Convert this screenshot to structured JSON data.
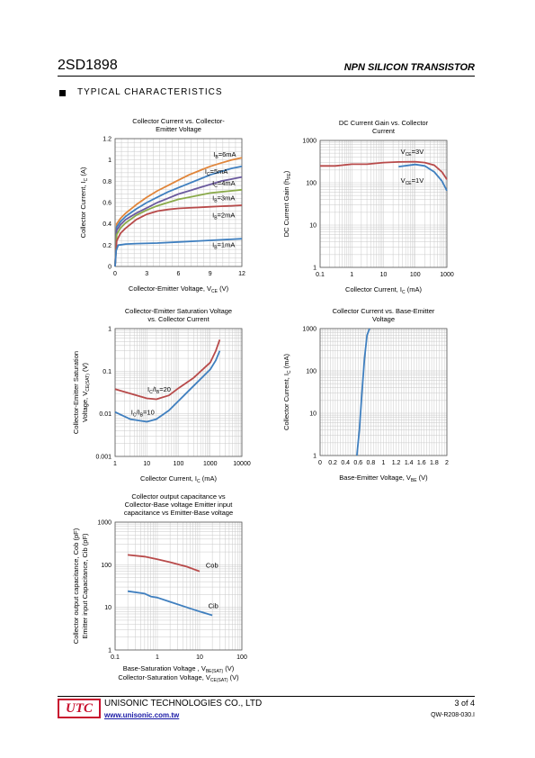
{
  "header": {
    "part_number": "2SD1898",
    "device_type": "NPN SILICON TRANSISTOR"
  },
  "section": {
    "title": "TYPICAL CHARACTERISTICS"
  },
  "footer": {
    "logo_text": "UTC",
    "company": "UNISONIC TECHNOLOGIES CO., LTD",
    "url": "www.unisonic.com.tw",
    "page": "3 of 4",
    "doc_number": "QW-R208-030.I"
  },
  "colors": {
    "orange": "#e0853a",
    "blue": "#3f7fbf",
    "navy": "#3a6ea8",
    "green": "#8aaa4a",
    "red": "#b84a4a",
    "purple": "#6b5a9e",
    "logo_red": "#c8102e"
  },
  "chart_data": [
    {
      "type": "line",
      "title": "Collector Current vs. Collector-Emitter Voltage",
      "title_lines": [
        "Collector Current vs. Collector-",
        "Emitter Voltage"
      ],
      "xlabel": "Collector-Emitter Voltage, V",
      "xlabel_sub": "CE",
      "xlabel_tail": " (V)",
      "ylabel": "Collector Current, I",
      "ylabel_sub": "C",
      "ylabel_tail": " (A)",
      "xscale": "linear",
      "yscale": "linear",
      "xlim": [
        0,
        12
      ],
      "ylim": [
        0,
        1.2
      ],
      "xticks": [
        0,
        3,
        6,
        9,
        12
      ],
      "yticks": [
        0,
        0.2,
        0.4,
        0.6,
        0.8,
        1.0,
        1.2
      ],
      "xtick_labels": [
        "0",
        "3",
        "6",
        "9",
        "12"
      ],
      "ytick_labels": [
        "0",
        "0.2",
        "0.4",
        "0.6",
        "0.8",
        "1",
        "1.2"
      ],
      "grid": true,
      "series": [
        {
          "name": "I",
          "name_sub": "B",
          "name_tail": "=6mA",
          "color": "#e0853a",
          "label_at": [
            9.3,
            1.03
          ],
          "points": [
            [
              0,
              0
            ],
            [
              0.15,
              0.4
            ],
            [
              0.5,
              0.45
            ],
            [
              1,
              0.5
            ],
            [
              2,
              0.58
            ],
            [
              3,
              0.65
            ],
            [
              4,
              0.71
            ],
            [
              5,
              0.76
            ],
            [
              6,
              0.81
            ],
            [
              7,
              0.86
            ],
            [
              8,
              0.9
            ],
            [
              9,
              0.94
            ],
            [
              10,
              0.97
            ],
            [
              11,
              1.0
            ],
            [
              12,
              1.02
            ]
          ]
        },
        {
          "name": "I",
          "name_sub": "C",
          "name_tail": "=5mA",
          "color": "#3f7fbf",
          "label_at": [
            8.5,
            0.87
          ],
          "points": [
            [
              0,
              0
            ],
            [
              0.15,
              0.37
            ],
            [
              0.5,
              0.42
            ],
            [
              1,
              0.47
            ],
            [
              2,
              0.54
            ],
            [
              3,
              0.6
            ],
            [
              4,
              0.65
            ],
            [
              5,
              0.7
            ],
            [
              6,
              0.74
            ],
            [
              7,
              0.78
            ],
            [
              8,
              0.82
            ],
            [
              9,
              0.86
            ],
            [
              10,
              0.89
            ],
            [
              11,
              0.92
            ],
            [
              12,
              0.94
            ]
          ]
        },
        {
          "name": "I",
          "name_sub": "C",
          "name_tail": "=4mA",
          "color": "#6b5a9e",
          "label_at": [
            9.2,
            0.76
          ],
          "points": [
            [
              0,
              0
            ],
            [
              0.15,
              0.34
            ],
            [
              0.5,
              0.39
            ],
            [
              1,
              0.44
            ],
            [
              2,
              0.5
            ],
            [
              3,
              0.55
            ],
            [
              4,
              0.6
            ],
            [
              5,
              0.64
            ],
            [
              6,
              0.68
            ],
            [
              7,
              0.71
            ],
            [
              8,
              0.74
            ],
            [
              9,
              0.77
            ],
            [
              10,
              0.8
            ],
            [
              11,
              0.82
            ],
            [
              12,
              0.84
            ]
          ]
        },
        {
          "name": "I",
          "name_sub": "B",
          "name_tail": "=3mA",
          "color": "#8aaa4a",
          "label_at": [
            9.2,
            0.62
          ],
          "points": [
            [
              0,
              0
            ],
            [
              0.15,
              0.3
            ],
            [
              0.5,
              0.36
            ],
            [
              1,
              0.41
            ],
            [
              2,
              0.48
            ],
            [
              3,
              0.53
            ],
            [
              4,
              0.57
            ],
            [
              5,
              0.6
            ],
            [
              6,
              0.63
            ],
            [
              7,
              0.65
            ],
            [
              8,
              0.67
            ],
            [
              9,
              0.69
            ],
            [
              10,
              0.7
            ],
            [
              11,
              0.71
            ],
            [
              12,
              0.72
            ]
          ]
        },
        {
          "name": "I",
          "name_sub": "B",
          "name_tail": "=2mA",
          "color": "#b84a4a",
          "label_at": [
            9.2,
            0.46
          ],
          "points": [
            [
              0,
              0
            ],
            [
              0.15,
              0.24
            ],
            [
              0.5,
              0.31
            ],
            [
              1,
              0.36
            ],
            [
              2,
              0.44
            ],
            [
              3,
              0.49
            ],
            [
              4,
              0.52
            ],
            [
              5,
              0.535
            ],
            [
              6,
              0.545
            ],
            [
              7,
              0.55
            ],
            [
              8,
              0.555
            ],
            [
              9,
              0.56
            ],
            [
              10,
              0.565
            ],
            [
              11,
              0.57
            ],
            [
              12,
              0.575
            ]
          ]
        },
        {
          "name": "I",
          "name_sub": "B",
          "name_tail": "=1mA",
          "color": "#3f7fbf",
          "label_at": [
            9.2,
            0.18
          ],
          "points": [
            [
              0,
              0
            ],
            [
              0.1,
              0.15
            ],
            [
              0.3,
              0.2
            ],
            [
              0.7,
              0.205
            ],
            [
              1,
              0.21
            ],
            [
              2,
              0.215
            ],
            [
              4,
              0.22
            ],
            [
              6,
              0.23
            ],
            [
              8,
              0.24
            ],
            [
              10,
              0.25
            ],
            [
              12,
              0.26
            ]
          ]
        }
      ]
    },
    {
      "type": "line",
      "title": "DC Current Gain vs. Collector Current",
      "title_lines": [
        "DC Current Gain vs. Collector",
        "Current"
      ],
      "xlabel": "Collector Current, I",
      "xlabel_sub": "C",
      "xlabel_tail": " (mA)",
      "ylabel": "DC Current Gain (h",
      "ylabel_sub": "FE",
      "ylabel_tail": ")",
      "xscale": "log",
      "yscale": "log",
      "xlim": [
        0.1,
        1000
      ],
      "ylim": [
        1,
        1000
      ],
      "xticks": [
        0.1,
        1,
        10,
        100,
        1000
      ],
      "yticks": [
        1,
        10,
        100,
        1000
      ],
      "xtick_labels": [
        "0.1",
        "1",
        "10",
        "100",
        "1000"
      ],
      "ytick_labels": [
        "1",
        "10",
        "100",
        "1000"
      ],
      "grid": true,
      "series": [
        {
          "name": "V",
          "name_sub": "CE",
          "name_tail": "=3V",
          "color": "#b84a4a",
          "label_at": [
            35,
            480
          ],
          "points": [
            [
              0.1,
              250
            ],
            [
              0.3,
              250
            ],
            [
              1,
              275
            ],
            [
              3,
              275
            ],
            [
              10,
              300
            ],
            [
              30,
              310
            ],
            [
              100,
              315
            ],
            [
              200,
              300
            ],
            [
              400,
              260
            ],
            [
              700,
              180
            ],
            [
              1000,
              120
            ]
          ]
        },
        {
          "name": "V",
          "name_sub": "CE",
          "name_tail": "=1V",
          "color": "#3f7fbf",
          "label_at": [
            35,
            100
          ],
          "points": [
            [
              30,
              240
            ],
            [
              100,
              270
            ],
            [
              200,
              250
            ],
            [
              400,
              180
            ],
            [
              700,
              110
            ],
            [
              1000,
              65
            ]
          ]
        }
      ]
    },
    {
      "type": "line",
      "title": "Collector-Emitter Saturation Voltage vs. Collector Current",
      "title_lines": [
        "Collector-Emitter Saturation Voltage",
        "vs. Collector Current"
      ],
      "xlabel": "Collector Current, I",
      "xlabel_sub": "C",
      "xlabel_tail": " (mA)",
      "ylabel_lines": [
        "Collector-Emitter Saturation",
        "Voltage, V"
      ],
      "ylabel_sub": "CE(SAT)",
      "ylabel_tail": " (V)",
      "xscale": "log",
      "yscale": "log",
      "xlim": [
        1,
        10000
      ],
      "ylim": [
        0.001,
        1
      ],
      "xticks": [
        1,
        10,
        100,
        1000,
        10000
      ],
      "yticks": [
        0.001,
        0.01,
        0.1,
        1
      ],
      "xtick_labels": [
        "1",
        "10",
        "100",
        "1000",
        "10000"
      ],
      "ytick_labels": [
        "0.001",
        "0.01",
        "0.1",
        "1"
      ],
      "grid": true,
      "series": [
        {
          "name": "I",
          "name_sub": "C",
          "name_tail": "/I",
          "name_sub2": "B",
          "name_tail2": "=20",
          "color": "#b84a4a",
          "label_at": [
            10.5,
            0.033
          ],
          "points": [
            [
              1,
              0.038
            ],
            [
              3,
              0.03
            ],
            [
              10,
              0.023
            ],
            [
              20,
              0.022
            ],
            [
              50,
              0.027
            ],
            [
              100,
              0.04
            ],
            [
              300,
              0.07
            ],
            [
              1000,
              0.16
            ],
            [
              1500,
              0.3
            ],
            [
              2000,
              0.55
            ]
          ]
        },
        {
          "name": "I",
          "name_sub": "C",
          "name_tail": "/I",
          "name_sub2": "B",
          "name_tail2": "=10",
          "color": "#3f7fbf",
          "label_at": [
            3.2,
            0.0095
          ],
          "points": [
            [
              1,
              0.011
            ],
            [
              3,
              0.0075
            ],
            [
              10,
              0.0065
            ],
            [
              20,
              0.0075
            ],
            [
              50,
              0.012
            ],
            [
              100,
              0.02
            ],
            [
              300,
              0.045
            ],
            [
              1000,
              0.11
            ],
            [
              1500,
              0.18
            ],
            [
              2000,
              0.3
            ]
          ]
        }
      ]
    },
    {
      "type": "line",
      "title": "Collector Current vs. Base-Emitter Voltage",
      "title_lines": [
        "Collector Current vs. Base-Emitter",
        "Voltage"
      ],
      "xlabel": "Base-Emitter Voltage, V",
      "xlabel_sub": "BE",
      "xlabel_tail": " (V)",
      "ylabel": "Collector Current, I",
      "ylabel_sub": "C",
      "ylabel_tail": " (mA)",
      "xscale": "linear",
      "yscale": "log",
      "xlim": [
        0,
        2
      ],
      "ylim": [
        1,
        1000
      ],
      "xticks": [
        0,
        0.2,
        0.4,
        0.6,
        0.8,
        1.0,
        1.2,
        1.4,
        1.6,
        1.8,
        2.0
      ],
      "yticks": [
        1,
        10,
        100,
        1000
      ],
      "xtick_labels": [
        "0",
        "0.2",
        "0.4",
        "0.6",
        "0.8",
        "1",
        "1.2",
        "1.4",
        "1.6",
        "1.8",
        "2"
      ],
      "ytick_labels": [
        "1",
        "10",
        "100",
        "1000"
      ],
      "grid": true,
      "series": [
        {
          "name": "",
          "color": "#3f7fbf",
          "label_at": null,
          "points": [
            [
              0.58,
              1
            ],
            [
              0.62,
              4
            ],
            [
              0.66,
              30
            ],
            [
              0.7,
              200
            ],
            [
              0.74,
              700
            ],
            [
              0.78,
              1000
            ]
          ]
        }
      ]
    },
    {
      "type": "line",
      "title": "Collector output capacitance vs Collector-Base voltage Emitter input capacitance vs Emitter-Base voltage",
      "title_lines": [
        "Collector  output capacitance vs",
        "Collector-Base voltage Emitter input",
        "capacitance vs Emitter-Base voltage"
      ],
      "xlabel_lines": [
        "Base-Saturation Voltage , V",
        "Collector-Saturation Voltage, V"
      ],
      "xlabel_subs": [
        "BE(SAT)",
        "CE(SAT)"
      ],
      "xlabel_tail": " (V)",
      "ylabel_lines": [
        "Collector output capacitance, Cob (pF)",
        "Emitter input Capacitance, Cib (pF)"
      ],
      "xscale": "log",
      "yscale": "log",
      "xlim": [
        0.1,
        100
      ],
      "ylim": [
        1,
        1000
      ],
      "xticks": [
        0.1,
        1,
        10,
        100
      ],
      "yticks": [
        1,
        10,
        100,
        1000
      ],
      "xtick_labels": [
        "0.1",
        "1",
        "10",
        "100"
      ],
      "ytick_labels": [
        "1",
        "10",
        "100",
        "1000"
      ],
      "grid": true,
      "series": [
        {
          "name": "Cob",
          "color": "#b84a4a",
          "label_at": [
            14,
            85
          ],
          "points": [
            [
              0.2,
              170
            ],
            [
              0.5,
              155
            ],
            [
              1,
              135
            ],
            [
              2,
              115
            ],
            [
              5,
              90
            ],
            [
              10,
              70
            ]
          ]
        },
        {
          "name": "Cib",
          "color": "#3f7fbf",
          "label_at": [
            16,
            9.5
          ],
          "points": [
            [
              0.2,
              24
            ],
            [
              0.5,
              21
            ],
            [
              0.7,
              18
            ],
            [
              1,
              17
            ],
            [
              2,
              13.5
            ],
            [
              5,
              10
            ],
            [
              10,
              8
            ],
            [
              20,
              6.5
            ]
          ]
        }
      ]
    }
  ]
}
